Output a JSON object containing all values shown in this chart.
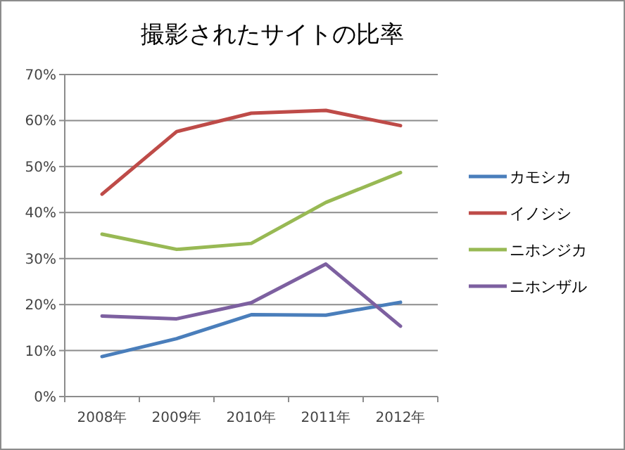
{
  "chart_data": {
    "type": "line",
    "title": "撮影されたサイトの比率",
    "categories": [
      "2008年",
      "2009年",
      "2010年",
      "2011年",
      "2012年"
    ],
    "series": [
      {
        "name": "カモシカ",
        "color": "#4a7ebb",
        "values": [
          8.7,
          12.6,
          17.8,
          17.7,
          20.5
        ]
      },
      {
        "name": "イノシシ",
        "color": "#be4b48",
        "values": [
          44.0,
          57.6,
          61.6,
          62.2,
          58.9
        ]
      },
      {
        "name": "ニホンジカ",
        "color": "#98b954",
        "values": [
          35.3,
          32.0,
          33.3,
          42.2,
          48.7
        ]
      },
      {
        "name": "ニホンザル",
        "color": "#7d60a0",
        "values": [
          17.5,
          16.9,
          20.4,
          28.8,
          15.3
        ]
      }
    ],
    "ylim": [
      0,
      70
    ],
    "yticks": [
      {
        "value": 0,
        "label": "0%"
      },
      {
        "value": 10,
        "label": "10%"
      },
      {
        "value": 20,
        "label": "20%"
      },
      {
        "value": 30,
        "label": "30%"
      },
      {
        "value": 40,
        "label": "40%"
      },
      {
        "value": 50,
        "label": "50%"
      },
      {
        "value": 60,
        "label": "60%"
      },
      {
        "value": 70,
        "label": "70%"
      }
    ],
    "grid": "y",
    "legend": "right",
    "marker": "none",
    "line_style": "solid"
  }
}
